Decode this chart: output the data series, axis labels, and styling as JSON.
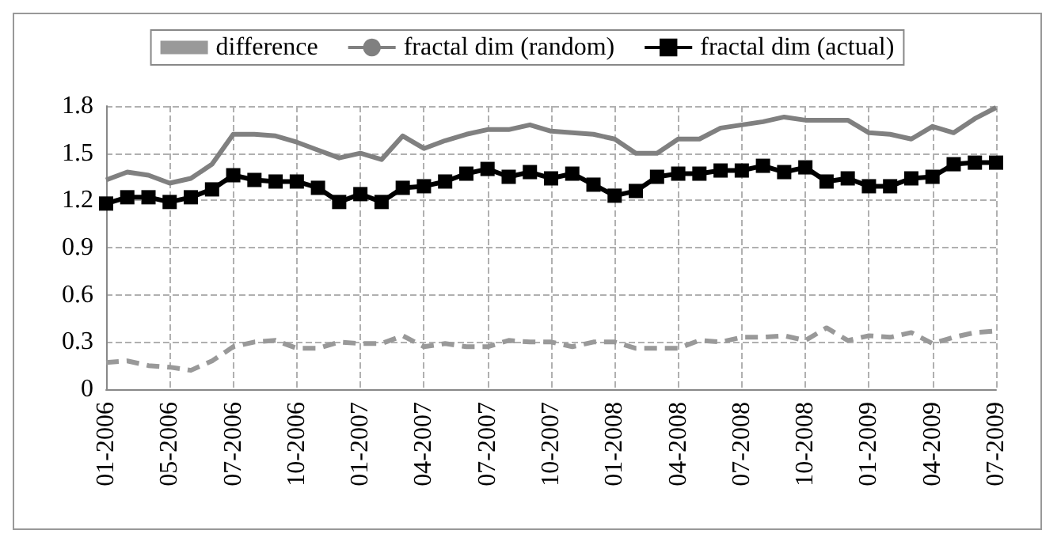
{
  "chart_data": {
    "type": "line",
    "categories": [
      "01-2006",
      null,
      null,
      "05-2006",
      null,
      null,
      "07-2006",
      null,
      null,
      "10-2006",
      null,
      null,
      "01-2007",
      null,
      null,
      "04-2007",
      null,
      null,
      "07-2007",
      null,
      null,
      "10-2007",
      null,
      null,
      "01-2008",
      null,
      null,
      "04-2008",
      null,
      null,
      "07-2008",
      null,
      null,
      "10-2008",
      null,
      null,
      "01-2009",
      null,
      null,
      "04-2009",
      null,
      null,
      "07-2009"
    ],
    "series": [
      {
        "name": "difference",
        "color": "#999999",
        "marker": "none",
        "line_style": "dashed",
        "values": [
          0.17,
          0.18,
          0.15,
          0.14,
          0.12,
          0.18,
          0.27,
          0.3,
          0.31,
          0.26,
          0.26,
          0.3,
          0.29,
          0.29,
          0.34,
          0.27,
          0.29,
          0.27,
          0.27,
          0.31,
          0.3,
          0.3,
          0.27,
          0.3,
          0.3,
          0.26,
          0.26,
          0.26,
          0.31,
          0.3,
          0.33,
          0.33,
          0.34,
          0.31,
          0.39,
          0.31,
          0.34,
          0.33,
          0.36,
          0.29,
          0.33,
          0.36,
          0.37
        ]
      },
      {
        "name": "fractal dim (random)",
        "color": "#808080",
        "marker": "none",
        "line_style": "solid",
        "values": [
          1.33,
          1.38,
          1.36,
          1.31,
          1.34,
          1.43,
          1.62,
          1.62,
          1.61,
          1.57,
          1.52,
          1.47,
          1.5,
          1.46,
          1.61,
          1.53,
          1.58,
          1.62,
          1.65,
          1.65,
          1.68,
          1.64,
          1.63,
          1.62,
          1.59,
          1.5,
          1.5,
          1.59,
          1.59,
          1.66,
          1.68,
          1.7,
          1.73,
          1.71,
          1.71,
          1.71,
          1.63,
          1.62,
          1.59,
          1.67,
          1.63,
          1.72,
          1.79
        ]
      },
      {
        "name": "fractal dim (actual)",
        "color": "#000000",
        "marker": "square",
        "line_style": "solid",
        "values": [
          1.18,
          1.22,
          1.22,
          1.19,
          1.22,
          1.27,
          1.36,
          1.33,
          1.32,
          1.32,
          1.28,
          1.19,
          1.24,
          1.19,
          1.28,
          1.29,
          1.32,
          1.37,
          1.4,
          1.35,
          1.38,
          1.34,
          1.37,
          1.3,
          1.23,
          1.26,
          1.35,
          1.37,
          1.37,
          1.39,
          1.39,
          1.42,
          1.38,
          1.41,
          1.32,
          1.34,
          1.29,
          1.29,
          1.34,
          1.35,
          1.43,
          1.44,
          1.44
        ]
      }
    ],
    "ylim": [
      0,
      1.8
    ],
    "yticks": [
      0,
      0.3,
      0.6,
      0.9,
      1.2,
      1.5,
      1.8
    ],
    "grid": true,
    "legend": "top"
  }
}
